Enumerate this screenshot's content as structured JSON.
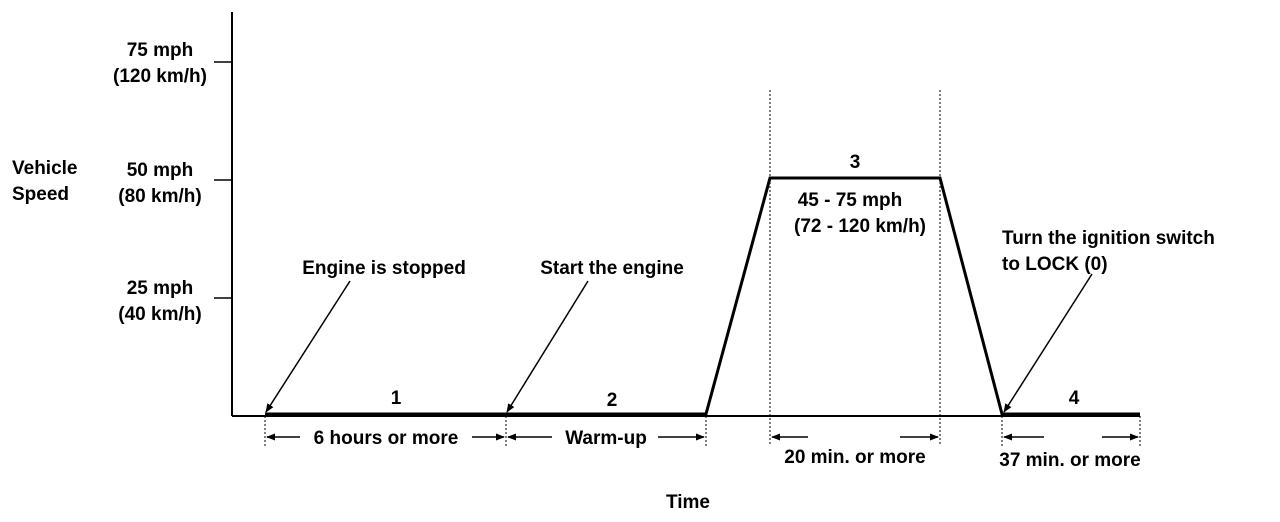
{
  "y_axis": {
    "title_lines": [
      "Vehicle",
      "Speed"
    ],
    "ticks": [
      {
        "line1": "75 mph",
        "line2": "(120 km/h)"
      },
      {
        "line1": "50 mph",
        "line2": "(80 km/h)"
      },
      {
        "line1": "25 mph",
        "line2": "(40 km/h)"
      }
    ]
  },
  "x_axis": {
    "title": "Time"
  },
  "phases": [
    {
      "number": "1",
      "duration": "6 hours or more"
    },
    {
      "number": "2",
      "duration": "Warm-up"
    },
    {
      "number": "3",
      "duration": "20 min. or more",
      "speed_line1": "45 - 75 mph",
      "speed_line2": "(72 - 120 km/h)"
    },
    {
      "number": "4",
      "duration": "37 min. or more"
    }
  ],
  "events": {
    "engine_stopped": "Engine is stopped",
    "start_engine": "Start the engine",
    "ignition_line1": "Turn the ignition switch",
    "ignition_line2": "to LOCK (0)"
  },
  "colors": {
    "line": "#000000",
    "background": "#ffffff"
  }
}
